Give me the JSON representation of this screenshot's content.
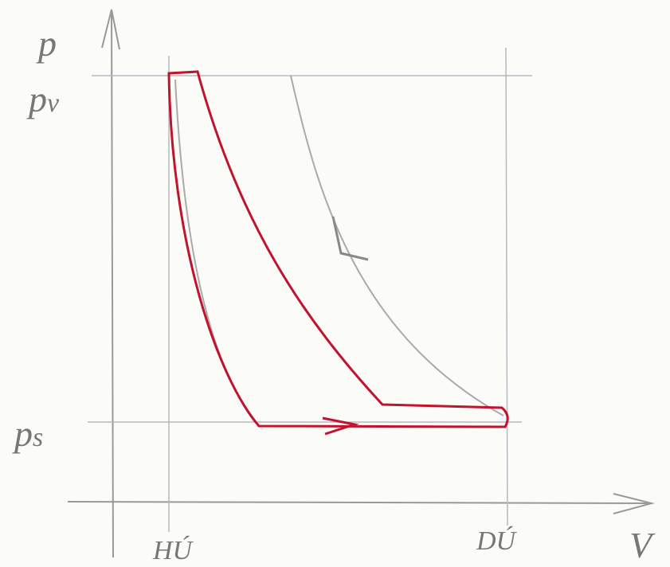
{
  "axes": {
    "y_label": "p",
    "x_label": "V"
  },
  "levels": [
    {
      "text": "p",
      "sub": "v"
    },
    {
      "text": "p",
      "sub": "s"
    }
  ],
  "positions": [
    "HÚ",
    "DÚ"
  ]
}
